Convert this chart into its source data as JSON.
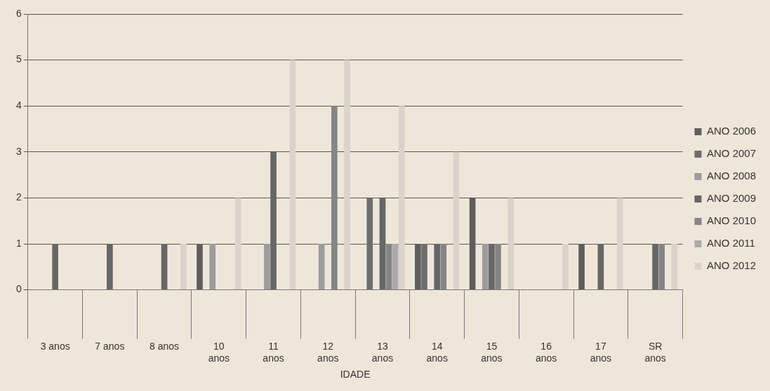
{
  "chart_data": {
    "type": "bar",
    "xlabel": "IDADE",
    "categories": [
      "3 anos",
      "7 anos",
      "8 anos",
      "10 anos",
      "11 anos",
      "12 anos",
      "13 anos",
      "14 anos",
      "15 anos",
      "16 anos",
      "17 anos",
      "SR anos"
    ],
    "series": [
      {
        "name": "ANO 2006",
        "color": "#5e5e5e",
        "values": [
          0,
          0,
          0,
          1,
          0,
          0,
          0,
          1,
          2,
          0,
          1,
          0
        ]
      },
      {
        "name": "ANO 2007",
        "color": "#6e6e6e",
        "values": [
          0,
          0,
          0,
          0,
          0,
          0,
          2,
          1,
          0,
          0,
          0,
          0
        ]
      },
      {
        "name": "ANO 2008",
        "color": "#9c9c9c",
        "values": [
          0,
          0,
          0,
          1,
          1,
          1,
          0,
          0,
          1,
          0,
          0,
          0
        ]
      },
      {
        "name": "ANO 2009",
        "color": "#666666",
        "values": [
          1,
          1,
          1,
          0,
          3,
          0,
          2,
          1,
          1,
          0,
          1,
          1
        ]
      },
      {
        "name": "ANO 2010",
        "color": "#858585",
        "values": [
          0,
          0,
          0,
          0,
          0,
          4,
          1,
          1,
          1,
          0,
          0,
          1
        ]
      },
      {
        "name": "ANO 2011",
        "color": "#aaaaaa",
        "values": [
          0,
          0,
          0,
          0,
          0,
          0,
          1,
          0,
          0,
          0,
          0,
          0
        ]
      },
      {
        "name": "ANO 2012",
        "color": "#d9d3ca",
        "values": [
          0,
          0,
          1,
          2,
          5,
          5,
          4,
          3,
          2,
          1,
          2,
          1
        ]
      }
    ],
    "ylim": [
      0,
      6
    ],
    "yticks": [
      0,
      1,
      2,
      3,
      4,
      5,
      6
    ],
    "grid": "y",
    "legend": "right"
  }
}
